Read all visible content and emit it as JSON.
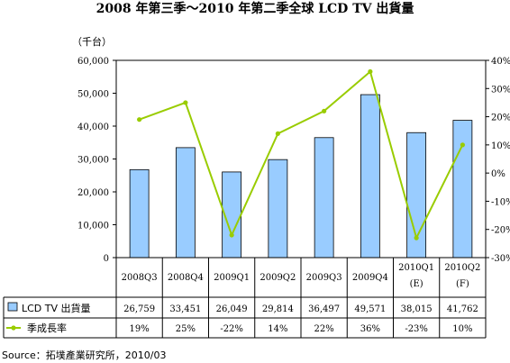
{
  "chart_data": {
    "type": "bar",
    "title": "2008 年第三季～2010 年第二季全球 LCD TV 出貨量",
    "unit_label": "（千台）",
    "categories": [
      "2008Q3",
      "2008Q4",
      "2009Q1",
      "2009Q2",
      "2009Q3",
      "2009Q4",
      "2010Q1",
      "2010Q2"
    ],
    "category_notes": [
      "",
      "",
      "",
      "",
      "",
      "",
      "(E)",
      "(F)"
    ],
    "series": [
      {
        "name": "LCD TV 出貨量",
        "type": "bar",
        "axis": "left",
        "color": "#99ccff",
        "values": [
          26759,
          33451,
          26049,
          29814,
          36497,
          49571,
          38015,
          41762
        ],
        "display": [
          "26,759",
          "33,451",
          "26,049",
          "29,814",
          "36,497",
          "49,571",
          "38,015",
          "41,762"
        ]
      },
      {
        "name": "季成長率",
        "type": "line",
        "axis": "right",
        "color": "#99cc00",
        "values": [
          19,
          25,
          -22,
          14,
          22,
          36,
          -23,
          10
        ],
        "display": [
          "19%",
          "25%",
          "-22%",
          "14%",
          "22%",
          "36%",
          "-23%",
          "10%"
        ]
      }
    ],
    "ylim": [
      0,
      60000
    ],
    "yticks": [
      "60,000",
      "50,000",
      "40,000",
      "30,000",
      "20,000",
      "10,000",
      "0"
    ],
    "y2lim": [
      -30,
      40
    ],
    "y2ticks": [
      "40%",
      "30%",
      "20%",
      "10%",
      "0%",
      "-10%",
      "-20%",
      "-30%"
    ],
    "grid": false,
    "legend": "data-table"
  },
  "source": "Source：拓墣產業研究所，2010/03"
}
